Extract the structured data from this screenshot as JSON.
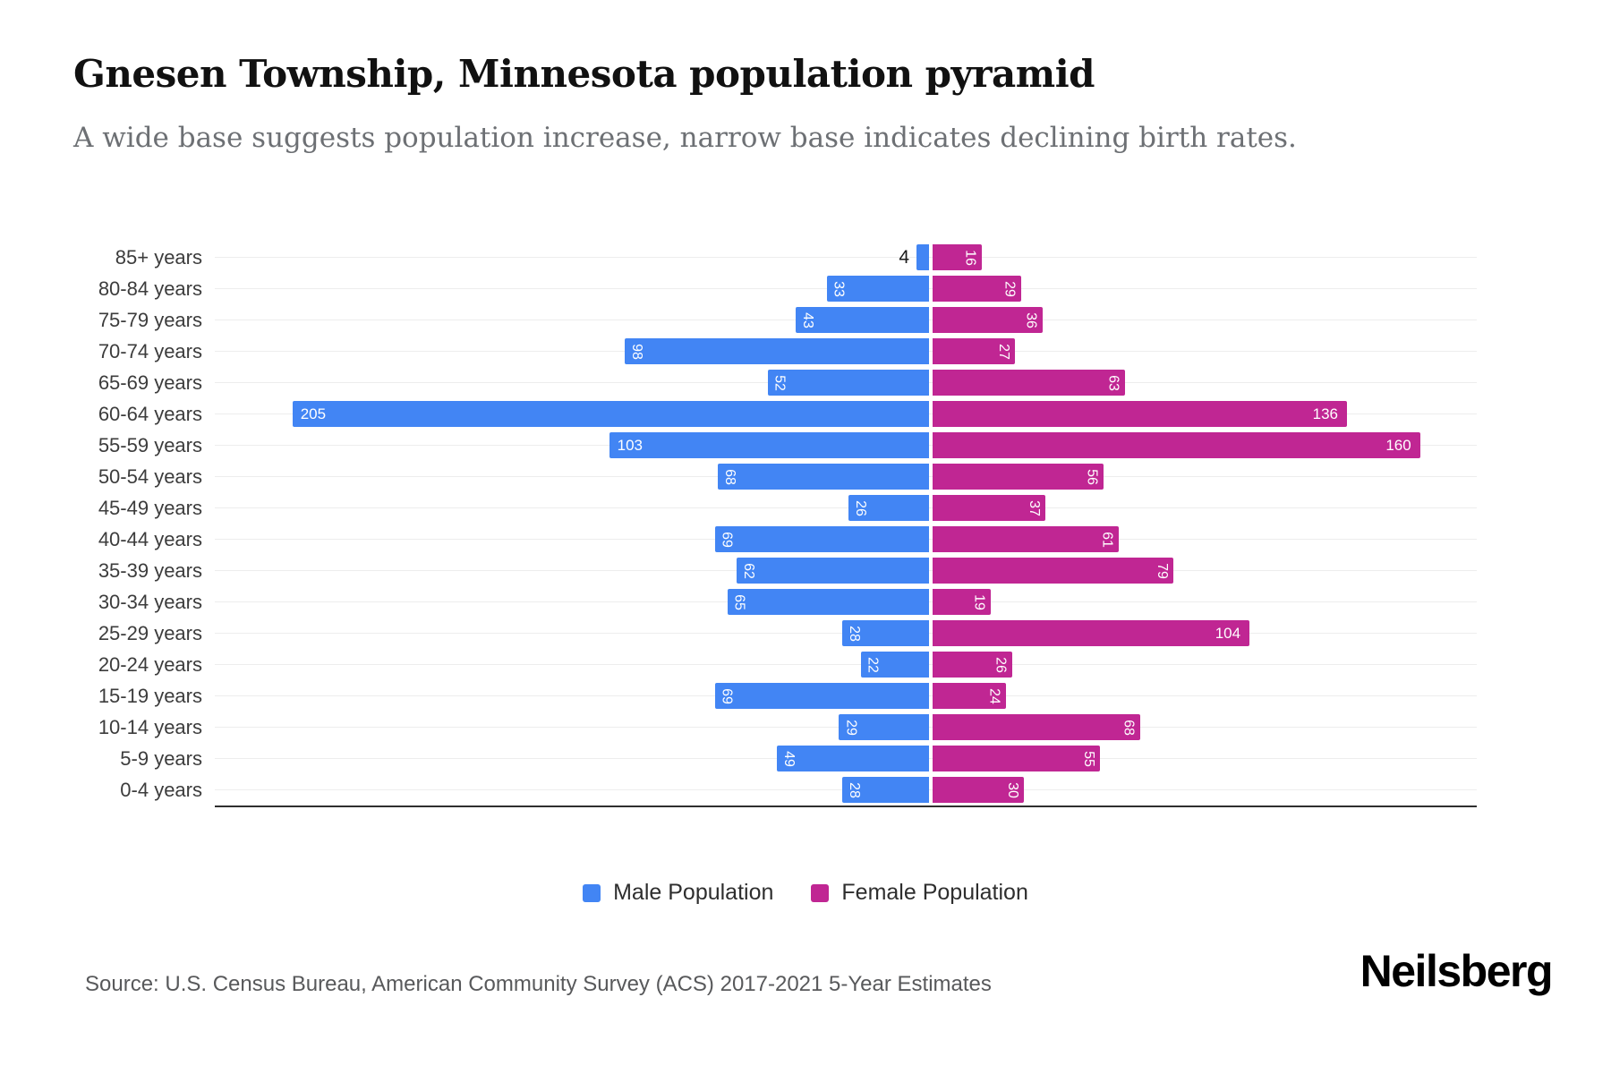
{
  "header": {
    "title": "Gnesen Township, Minnesota population pyramid",
    "subtitle": "A wide base suggests population increase, narrow base indicates declining birth rates."
  },
  "legend": [
    {
      "label": "Male Population",
      "color": "#4285F4"
    },
    {
      "label": "Female Population",
      "color": "#C02693"
    }
  ],
  "footer": {
    "source": "Source: U.S. Census Bureau, American Community Survey (ACS) 2017-2021 5-Year Estimates",
    "brand": "Neilsberg"
  },
  "chart_data": {
    "type": "bar",
    "variant": "population-pyramid",
    "title": "Gnesen Township, Minnesota population pyramid",
    "categories": [
      "85+ years",
      "80-84 years",
      "75-79 years",
      "70-74 years",
      "65-69 years",
      "60-64 years",
      "55-59 years",
      "50-54 years",
      "45-49 years",
      "40-44 years",
      "35-39 years",
      "30-34 years",
      "25-29 years",
      "20-24 years",
      "15-19 years",
      "10-14 years",
      "5-9 years",
      "0-4 years"
    ],
    "series": [
      {
        "name": "Male Population",
        "side": "left",
        "color": "#4285F4",
        "values": [
          4,
          33,
          43,
          98,
          52,
          205,
          103,
          68,
          26,
          69,
          62,
          65,
          28,
          22,
          69,
          29,
          49,
          28
        ]
      },
      {
        "name": "Female Population",
        "side": "right",
        "color": "#C02693",
        "values": [
          16,
          29,
          36,
          27,
          63,
          136,
          160,
          56,
          37,
          61,
          79,
          19,
          104,
          26,
          24,
          68,
          55,
          30
        ]
      }
    ],
    "x_axis": {
      "ticks_visible": false,
      "left_scale_max": 230,
      "right_scale_max": 178
    },
    "grid": "horizontal-row-lines",
    "legend_position": "bottom-center",
    "bar_label_color": "#ffffff",
    "outside_label_color": "#1a1a1a"
  }
}
